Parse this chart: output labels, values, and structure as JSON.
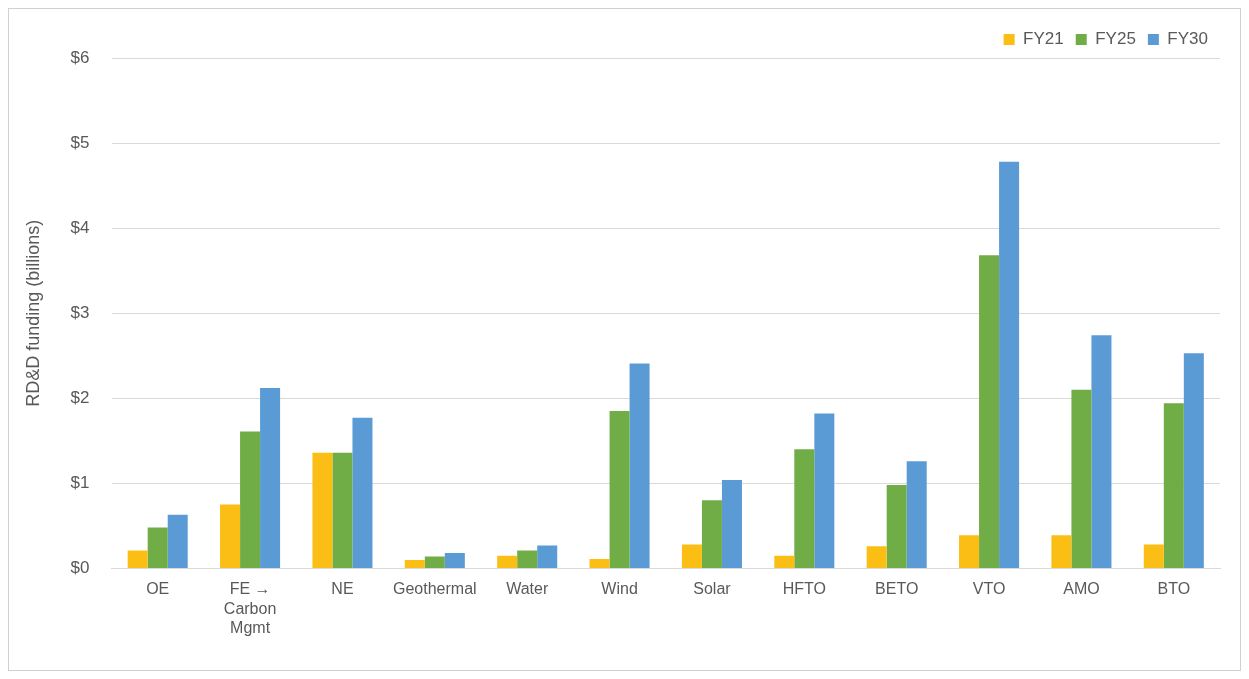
{
  "chart_data": {
    "type": "bar",
    "ylabel": "RD&D funding (billions)",
    "categories": [
      "OE",
      "FE → Carbon Mgmt",
      "NE",
      "Geothermal",
      "Water",
      "Wind",
      "Solar",
      "HFTO",
      "BETO",
      "VTO",
      "AMO",
      "BTO"
    ],
    "series": [
      {
        "name": "FY21",
        "color": "#fbbe14",
        "values": [
          0.21,
          0.75,
          1.36,
          0.1,
          0.15,
          0.11,
          0.28,
          0.15,
          0.26,
          0.39,
          0.39,
          0.28
        ]
      },
      {
        "name": "FY25",
        "color": "#70ad47",
        "values": [
          0.48,
          1.61,
          1.36,
          0.14,
          0.21,
          1.85,
          0.8,
          1.4,
          0.98,
          3.68,
          2.1,
          1.94
        ]
      },
      {
        "name": "FY30",
        "color": "#5b9bd5",
        "values": [
          0.63,
          2.12,
          1.77,
          0.18,
          0.27,
          2.41,
          1.04,
          1.82,
          1.26,
          4.78,
          2.74,
          2.53
        ]
      }
    ],
    "ylim": [
      0,
      6
    ],
    "yticks": [
      {
        "value": 0,
        "label": "$0"
      },
      {
        "value": 1,
        "label": "$1"
      },
      {
        "value": 2,
        "label": "$2"
      },
      {
        "value": 3,
        "label": "$3"
      },
      {
        "value": 4,
        "label": "$4"
      },
      {
        "value": 5,
        "label": "$5"
      },
      {
        "value": 6,
        "label": "$6"
      }
    ],
    "grid": "y",
    "legend": "top right"
  }
}
